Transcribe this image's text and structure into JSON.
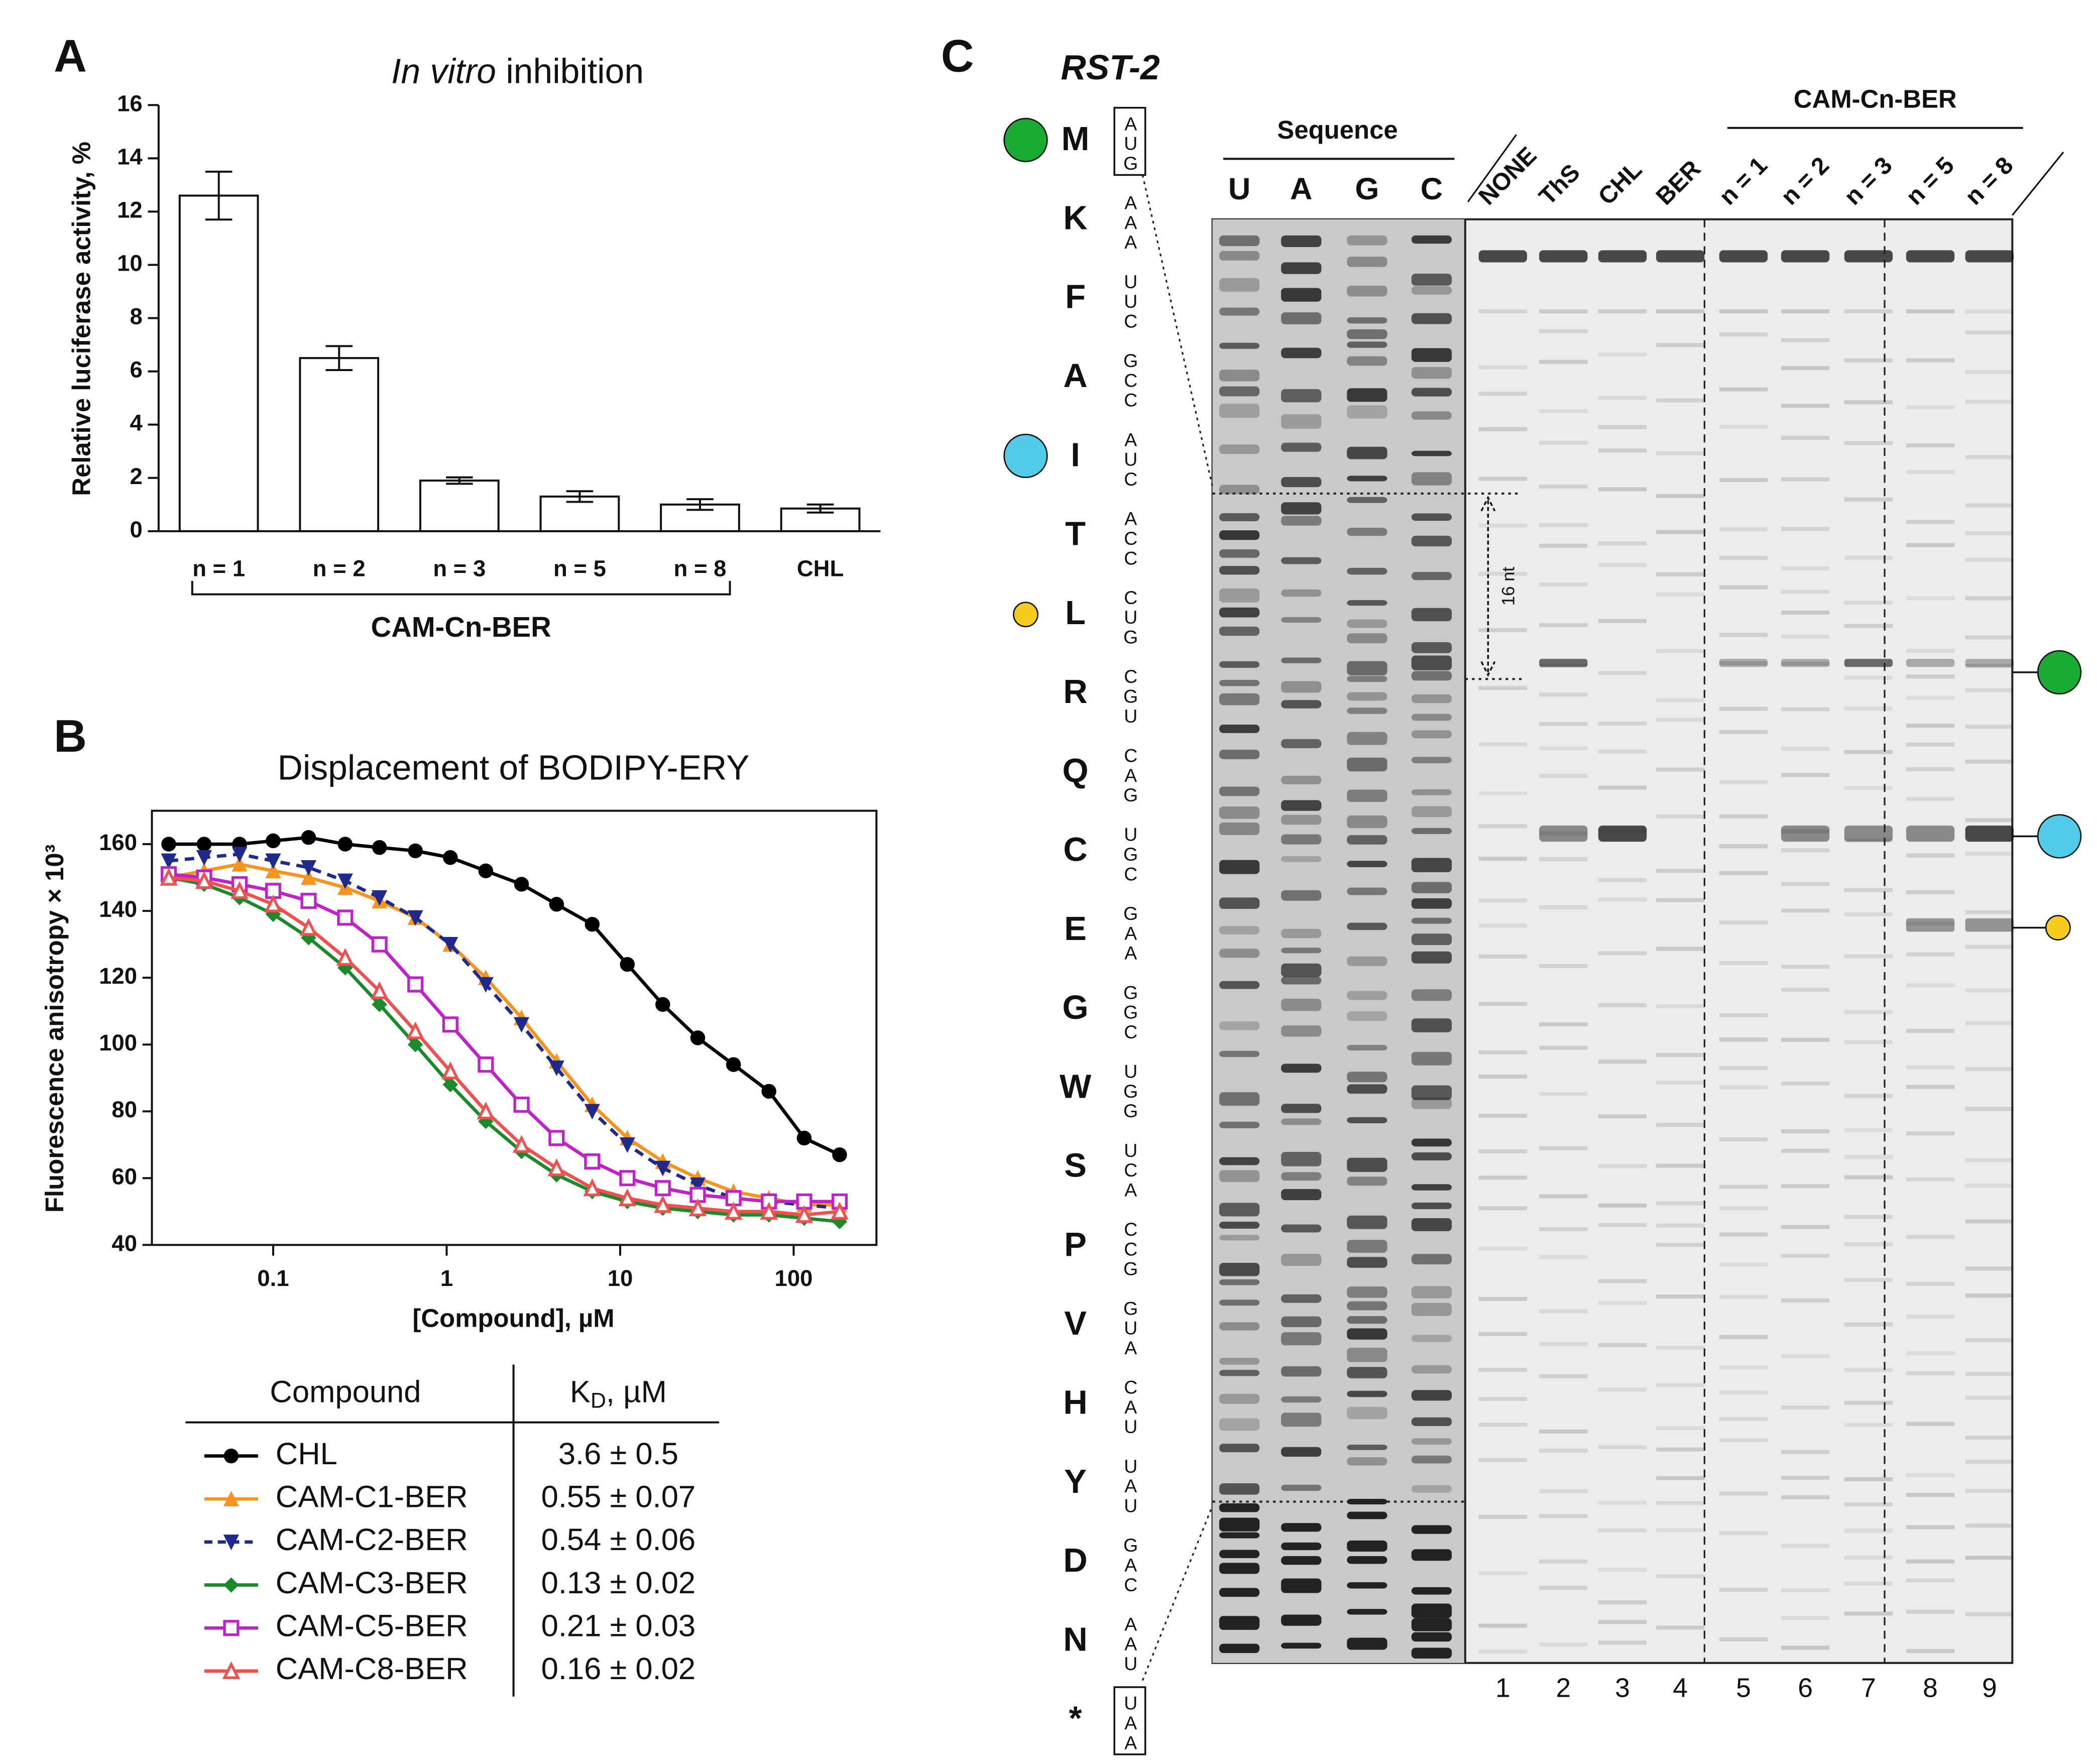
{
  "chart_data": [
    {
      "type": "bar",
      "panel": "A",
      "title_italic": "In vitro",
      "title_rest": "inhibition",
      "ylabel": "Relative luciferase activity, %",
      "categories": [
        "n = 1",
        "n = 2",
        "n = 3",
        "n = 5",
        "n = 8",
        "CHL"
      ],
      "values": [
        12.6,
        6.5,
        1.9,
        1.3,
        1.0,
        0.85
      ],
      "errors": [
        0.9,
        0.45,
        0.12,
        0.2,
        0.2,
        0.15
      ],
      "color": "#ffffff",
      "group_label": "CAM-Cn-BER",
      "ylim": [
        0,
        16
      ],
      "yticks": [
        0,
        2,
        4,
        6,
        8,
        10,
        12,
        14,
        16
      ]
    },
    {
      "type": "line",
      "panel": "B",
      "title": "Displacement of BODIPY-ERY",
      "xlabel": "[Compound], µM",
      "ylabel": "Fluorescence anisotropy × 10³",
      "xscale": "log",
      "xlim": [
        0.02,
        300
      ],
      "xticks": [
        0.1,
        1,
        10,
        100
      ],
      "ylim": [
        40,
        170
      ],
      "yticks": [
        40,
        60,
        80,
        100,
        120,
        140,
        160
      ],
      "x": [
        0.025,
        0.04,
        0.064,
        0.1,
        0.16,
        0.26,
        0.41,
        0.66,
        1.05,
        1.68,
        2.7,
        4.3,
        6.9,
        11,
        17.6,
        28,
        45,
        72,
        115,
        184
      ],
      "series": [
        {
          "name": "CHL",
          "color": "#000000",
          "marker": "circle",
          "dash": false,
          "values": [
            160,
            160,
            160,
            161,
            162,
            160,
            159,
            158,
            156,
            152,
            148,
            142,
            136,
            124,
            112,
            102,
            94,
            86,
            72,
            67
          ]
        },
        {
          "name": "CAM-C1-BER",
          "color": "#f7941d",
          "marker": "triangle",
          "dash": false,
          "values": [
            150,
            152,
            154,
            152,
            150,
            147,
            143,
            138,
            130,
            120,
            108,
            95,
            82,
            72,
            65,
            60,
            56,
            54,
            52,
            52
          ]
        },
        {
          "name": "CAM-C2-BER",
          "color": "#1f2a8c",
          "marker": "triangle-down",
          "dash": true,
          "values": [
            155,
            156,
            157,
            155,
            153,
            149,
            144,
            138,
            130,
            118,
            106,
            93,
            80,
            70,
            63,
            58,
            54,
            53,
            52,
            51
          ]
        },
        {
          "name": "CAM-C3-BER",
          "color": "#1a8a2a",
          "marker": "diamond",
          "dash": false,
          "values": [
            150,
            148,
            144,
            139,
            132,
            123,
            112,
            100,
            88,
            77,
            68,
            61,
            56,
            53,
            51,
            50,
            49,
            49,
            48,
            47
          ]
        },
        {
          "name": "CAM-C5-BER",
          "color": "#c021c8",
          "marker": "square-open",
          "dash": false,
          "values": [
            151,
            150,
            148,
            146,
            143,
            138,
            130,
            118,
            106,
            94,
            82,
            72,
            65,
            60,
            57,
            55,
            54,
            53,
            53,
            53
          ]
        },
        {
          "name": "CAM-C8-BER",
          "color": "#f05050",
          "marker": "triangle-open",
          "dash": false,
          "values": [
            150,
            149,
            146,
            142,
            135,
            126,
            116,
            104,
            92,
            80,
            70,
            63,
            57,
            54,
            52,
            51,
            50,
            50,
            49,
            50
          ]
        }
      ],
      "table": {
        "header_compound": "Compound",
        "header_kd": "K",
        "header_kd_sub": "D",
        "header_kd_unit": ",  µM",
        "kd": [
          "3.6 ± 0.5",
          "0.55 ± 0.07",
          "0.54 ± 0.06",
          "0.13 ± 0.02",
          "0.21 ± 0.03",
          "0.16 ± 0.02"
        ]
      }
    }
  ],
  "gel": {
    "panel": "C",
    "construct": "RST-2",
    "amino_acids": [
      "M",
      "K",
      "F",
      "A",
      "I",
      "T",
      "L",
      "R",
      "Q",
      "C",
      "E",
      "G",
      "W",
      "S",
      "P",
      "V",
      "H",
      "Y",
      "D",
      "N",
      "*"
    ],
    "codons": [
      "AUG",
      "AAA",
      "UUC",
      "GCC",
      "AUC",
      "ACC",
      "CUG",
      "CGU",
      "CAG",
      "UGC",
      "GAA",
      "GGC",
      "UGG",
      "UCA",
      "CCG",
      "GUA",
      "CAU",
      "UAU",
      "GAC",
      "AAU",
      "UAA"
    ],
    "sequence_header": "Sequence",
    "sequence_lanes": [
      "U",
      "A",
      "G",
      "C"
    ],
    "lanes": [
      "NONE",
      "ThS",
      "CHL",
      "BER",
      "n = 1",
      "n = 2",
      "n = 3",
      "n = 5",
      "n = 8"
    ],
    "lane_group": "CAM-Cn-BER",
    "lane_numbers": [
      "1",
      "2",
      "3",
      "4",
      "5",
      "6",
      "7",
      "8",
      "9"
    ],
    "spacing_label": "16 nt"
  }
}
